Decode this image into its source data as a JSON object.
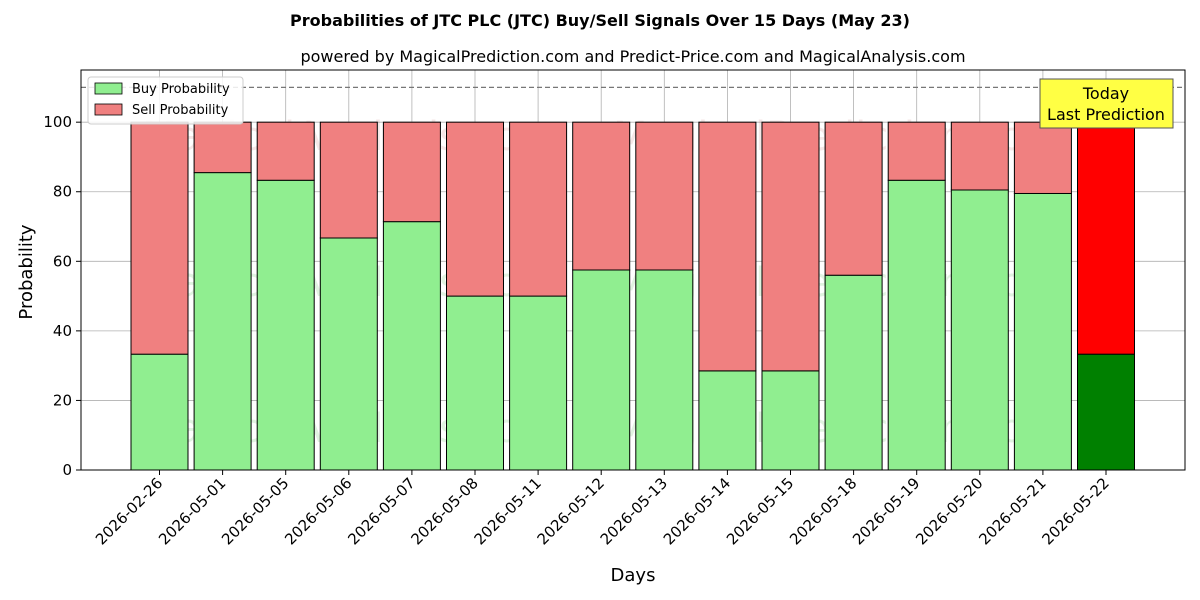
{
  "chart_data": {
    "type": "bar",
    "stacked": true,
    "title": "Probabilities of JTC PLC (JTC) Buy/Sell Signals Over 15 Days (May 23)",
    "subtitle": "powered by MagicalPrediction.com and Predict-Price.com and MagicalAnalysis.com",
    "xlabel": "Days",
    "ylabel": "Probability",
    "ylim": [
      0,
      115
    ],
    "yticks": [
      0,
      20,
      40,
      60,
      80,
      100
    ],
    "reference_line": 110,
    "grid": true,
    "legend_position": "top-left",
    "categories": [
      "2026-02-26",
      "2026-05-01",
      "2026-05-05",
      "2026-05-06",
      "2026-05-07",
      "2026-05-08",
      "2026-05-11",
      "2026-05-12",
      "2026-05-13",
      "2026-05-14",
      "2026-05-15",
      "2026-05-18",
      "2026-05-19",
      "2026-05-20",
      "2026-05-21",
      "2026-05-22"
    ],
    "series": [
      {
        "name": "Buy Probability",
        "color": "#90ee90",
        "highlight_color": "#008000",
        "values": [
          33.3,
          85.5,
          83.3,
          66.7,
          71.4,
          50.0,
          50.0,
          57.5,
          57.5,
          28.5,
          28.5,
          56.0,
          83.3,
          80.5,
          79.5,
          33.3
        ]
      },
      {
        "name": "Sell Probability",
        "color": "#f08080",
        "highlight_color": "#ff0000",
        "values": [
          66.7,
          14.5,
          16.7,
          33.3,
          28.6,
          50.0,
          50.0,
          42.5,
          42.5,
          71.5,
          71.5,
          44.0,
          16.7,
          19.5,
          20.5,
          66.7
        ]
      }
    ],
    "annotation": {
      "lines": [
        "Today",
        "Last Prediction"
      ],
      "color": "#ffff44"
    },
    "watermarks": [
      "MagicalAnalysis.com",
      "MagicalPrediction.com"
    ]
  }
}
